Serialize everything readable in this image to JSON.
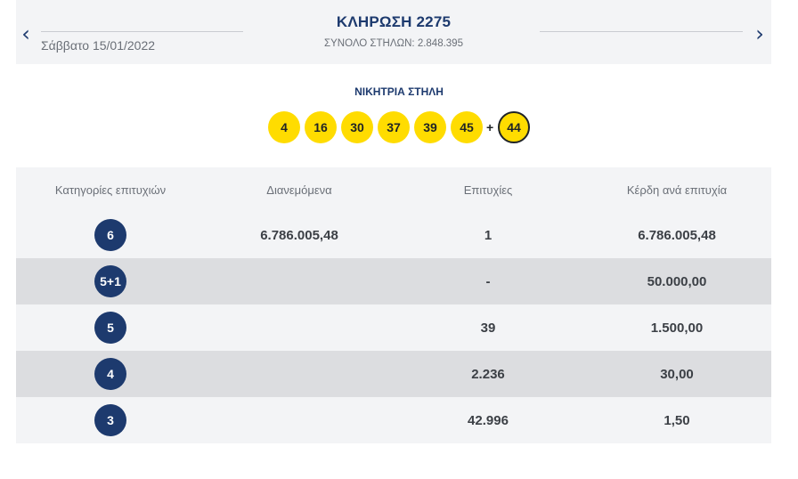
{
  "header": {
    "prev_icon": "chevron-left-icon",
    "next_icon": "chevron-right-icon",
    "date": "Σάββατο 15/01/2022",
    "draw_title": "ΚΛΗΡΩΣΗ 2275",
    "columns_total": "ΣΥΝΟΛΟ ΣΤΗΛΩΝ: 2.848.395"
  },
  "winning": {
    "title": "ΝΙΚΗΤΡΙΑ ΣΤΗΛΗ",
    "numbers": [
      "4",
      "16",
      "30",
      "37",
      "39",
      "45"
    ],
    "plus": "+",
    "bonus": "44"
  },
  "table": {
    "headers": [
      "Κατηγορίες επιτυχιών",
      "Διανεμόμενα",
      "Επιτυχίες",
      "Κέρδη ανά επιτυχία"
    ],
    "rows": [
      {
        "category": "6",
        "distributed": "6.786.005,48",
        "winners": "1",
        "prize": "6.786.005,48"
      },
      {
        "category": "5+1",
        "distributed": "",
        "winners": "-",
        "prize": "50.000,00"
      },
      {
        "category": "5",
        "distributed": "",
        "winners": "39",
        "prize": "1.500,00"
      },
      {
        "category": "4",
        "distributed": "",
        "winners": "2.236",
        "prize": "30,00"
      },
      {
        "category": "3",
        "distributed": "",
        "winners": "42.996",
        "prize": "1,50"
      }
    ]
  },
  "colors": {
    "navy": "#1d3a6e",
    "ball_yellow": "#ffdc00",
    "row_light": "#f3f4f6",
    "row_dark": "#dcdde0"
  }
}
